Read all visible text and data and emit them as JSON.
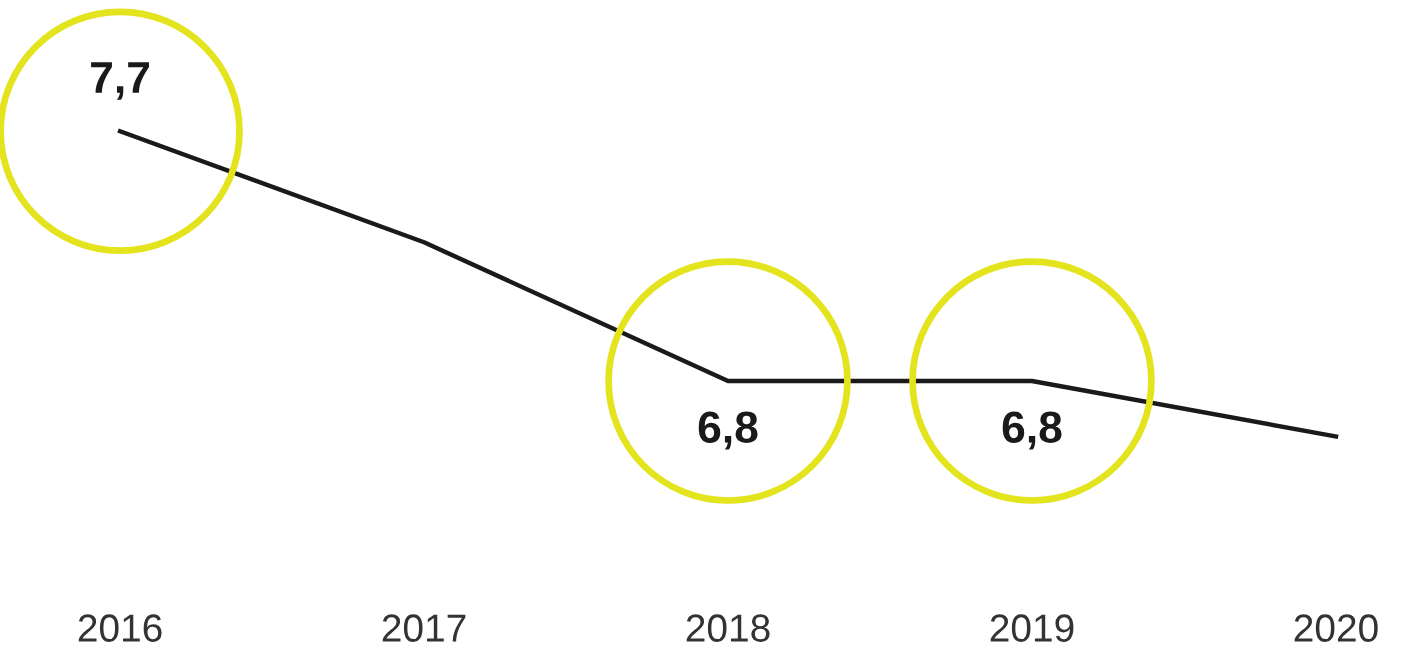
{
  "chart_data": {
    "type": "line",
    "categories": [
      "2016",
      "2017",
      "2018",
      "2019",
      "2020"
    ],
    "series": [
      {
        "color": "#1a1a1a",
        "values": [
          7.7,
          7.3,
          6.8,
          6.8,
          6.6
        ],
        "value_labels": [
          "7,7",
          null,
          "6,8",
          "6,8",
          null
        ]
      }
    ],
    "grid": false,
    "legend": false
  }
}
